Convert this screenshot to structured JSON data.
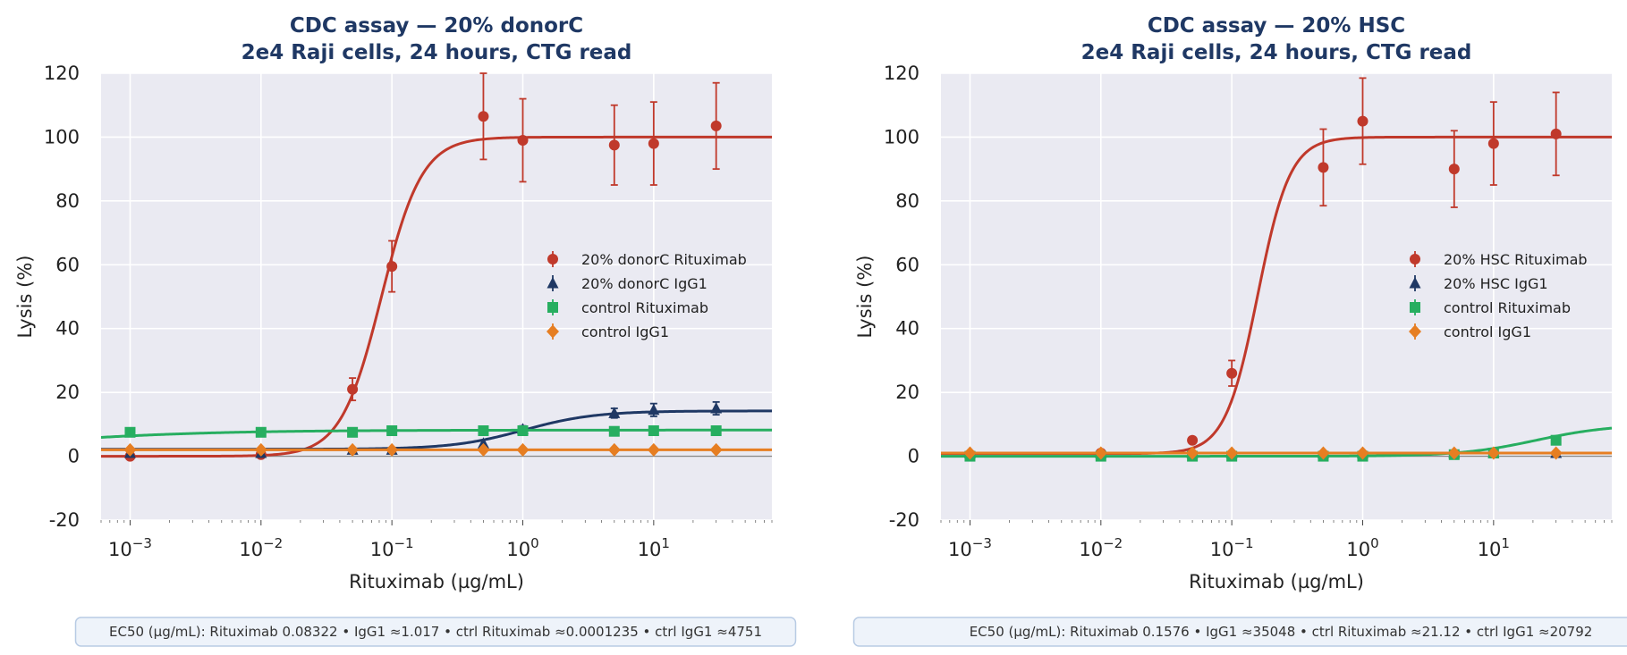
{
  "chart_data": [
    {
      "type": "scatter",
      "title": "CDC assay — 20% donorC",
      "subtitle": "2e4 Raji cells, 24 hours, CTG read",
      "xlabel": "Rituximab (µg/mL)",
      "ylabel": "Lysis (%)",
      "xscale": "log",
      "xlim": [
        0.0006,
        80
      ],
      "ylim": [
        -20,
        120
      ],
      "xticks": [
        "10^-3",
        "10^-2",
        "10^-1",
        "10^0",
        "10^1"
      ],
      "yticks": [
        "-20",
        "0",
        "20",
        "40",
        "60",
        "80",
        "100",
        "120"
      ],
      "grid": true,
      "legend_position": "center-right",
      "x": [
        0.001,
        0.01,
        0.05,
        0.1,
        0.5,
        1,
        5,
        10,
        30
      ],
      "series": [
        {
          "name": "20% donorC Rituximab",
          "color": "#c0392b",
          "marker": "circle",
          "values": [
            0,
            0.5,
            21,
            59.5,
            106.5,
            99,
            97.5,
            98,
            103.5
          ],
          "errors": [
            0,
            0,
            3.5,
            8,
            13.5,
            13,
            12.5,
            13,
            13.5
          ],
          "fit": {
            "bottom": 0,
            "top": 100,
            "ec50": 0.08322,
            "hill": 2.8
          }
        },
        {
          "name": "20% donorC IgG1",
          "color": "#1f3864",
          "marker": "triangle",
          "values": [
            1,
            1,
            2,
            2,
            4,
            8.5,
            13.5,
            14.5,
            15
          ],
          "errors": [
            0,
            0,
            0,
            0,
            0,
            1,
            1.5,
            2,
            2
          ],
          "fit": {
            "bottom": 2.2,
            "top": 14.2,
            "ec50": 1.017,
            "hill": 1.6
          }
        },
        {
          "name": "control Rituximab",
          "color": "#27ae60",
          "marker": "square",
          "values": [
            7.5,
            7.5,
            7.5,
            8,
            8,
            8,
            7.8,
            8,
            8
          ],
          "errors": [
            0,
            0,
            0,
            0,
            0,
            0,
            0,
            0,
            0
          ],
          "fit": {
            "bottom": 0,
            "top": 8.2,
            "ec50": 0.0001235,
            "hill": 0.6
          }
        },
        {
          "name": "control IgG1",
          "color": "#e67e22",
          "marker": "diamond",
          "values": [
            2,
            2,
            2,
            2,
            2,
            2,
            2,
            2,
            2
          ],
          "errors": [
            0,
            0,
            0,
            0,
            0,
            0,
            0,
            0,
            0
          ],
          "fit": {
            "bottom": 2,
            "top": 2,
            "ec50": 4751,
            "hill": 1
          }
        }
      ],
      "ec50_summary": "EC50 (µg/mL):  Rituximab 0.08322  •  IgG1 ≈1.017  •  ctrl Rituximab ≈0.0001235  •  ctrl IgG1 ≈4751"
    },
    {
      "type": "scatter",
      "title": "CDC assay — 20% HSC",
      "subtitle": "2e4 Raji cells, 24 hours, CTG read",
      "xlabel": "Rituximab (µg/mL)",
      "ylabel": "Lysis (%)",
      "xscale": "log",
      "xlim": [
        0.0006,
        80
      ],
      "ylim": [
        -20,
        120
      ],
      "xticks": [
        "10^-3",
        "10^-2",
        "10^-1",
        "10^0",
        "10^1"
      ],
      "yticks": [
        "-20",
        "0",
        "20",
        "40",
        "60",
        "80",
        "100",
        "120"
      ],
      "grid": true,
      "legend_position": "center-right",
      "x": [
        0.001,
        0.01,
        0.05,
        0.1,
        0.5,
        1,
        5,
        10,
        30
      ],
      "series": [
        {
          "name": "20% HSC Rituximab",
          "color": "#c0392b",
          "marker": "circle",
          "values": [
            0.5,
            1,
            5,
            26,
            90.5,
            105,
            90,
            98,
            101
          ],
          "errors": [
            0,
            0,
            1,
            4,
            12,
            13.5,
            12,
            13,
            13
          ],
          "fit": {
            "bottom": 0.8,
            "top": 100,
            "ec50": 0.1576,
            "hill": 3.5
          }
        },
        {
          "name": "20% HSC IgG1",
          "color": "#1f3864",
          "marker": "triangle",
          "values": [
            1,
            1,
            1,
            1,
            1,
            1,
            1,
            1,
            1
          ],
          "errors": [
            0,
            0,
            0,
            0,
            0,
            0,
            0,
            0,
            0
          ],
          "fit": {
            "bottom": 1,
            "top": 1,
            "ec50": 35048,
            "hill": 1
          }
        },
        {
          "name": "control Rituximab",
          "color": "#27ae60",
          "marker": "square",
          "values": [
            0,
            0,
            0,
            0,
            0,
            0,
            0.5,
            1,
            5
          ],
          "errors": [
            0,
            0,
            0,
            0,
            0,
            0,
            0,
            0,
            0
          ],
          "fit": {
            "bottom": 0,
            "top": 10,
            "ec50": 21.12,
            "hill": 1.5
          }
        },
        {
          "name": "control IgG1",
          "color": "#e67e22",
          "marker": "diamond",
          "values": [
            1,
            1,
            1,
            1,
            1,
            1,
            1,
            1,
            1
          ],
          "errors": [
            0,
            0,
            0,
            0,
            0,
            0,
            0,
            0,
            0
          ],
          "fit": {
            "bottom": 1,
            "top": 1,
            "ec50": 20792,
            "hill": 1
          }
        }
      ],
      "ec50_summary": "EC50 (µg/mL):  Rituximab 0.1576  •  IgG1 ≈35048  •  ctrl Rituximab ≈21.12  •  ctrl IgG1 ≈20792"
    }
  ]
}
